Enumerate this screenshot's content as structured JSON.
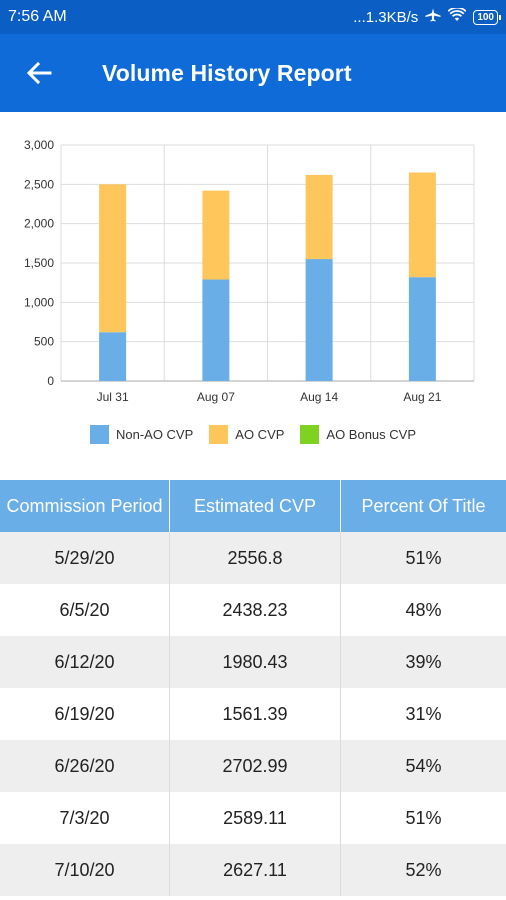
{
  "status_bar": {
    "time": "7:56 AM",
    "network_speed": "...1.3KB/s",
    "battery": "100",
    "icons": [
      "airplane-icon",
      "wifi-icon",
      "battery-icon"
    ]
  },
  "app_bar": {
    "title": "Volume History Report",
    "back_icon": "back-arrow-icon",
    "color": "#0e6bd7"
  },
  "chart_data": {
    "type": "bar",
    "stacked": true,
    "categories": [
      "Jul 31",
      "Aug 07",
      "Aug 14",
      "Aug 21"
    ],
    "series": [
      {
        "name": "Non-AO CVP",
        "color": "#6aaee8",
        "values": [
          620,
          1290,
          1550,
          1320
        ]
      },
      {
        "name": "AO CVP",
        "color": "#ffc65c",
        "values": [
          1880,
          1130,
          1070,
          1330
        ]
      },
      {
        "name": "AO Bonus CVP",
        "color": "#7ed321",
        "values": [
          0,
          0,
          0,
          0
        ]
      }
    ],
    "yticks": [
      "0",
      "500",
      "1,000",
      "1,500",
      "2,000",
      "2,500",
      "3,000"
    ],
    "ylim": [
      0,
      3000
    ],
    "grid": true,
    "legend_position": "bottom"
  },
  "table": {
    "headers": [
      "Commission Period",
      "Estimated CVP",
      "Percent Of Title"
    ],
    "rows": [
      [
        "5/29/20",
        "2556.8",
        "51%"
      ],
      [
        "6/5/20",
        "2438.23",
        "48%"
      ],
      [
        "6/12/20",
        "1980.43",
        "39%"
      ],
      [
        "6/19/20",
        "1561.39",
        "31%"
      ],
      [
        "6/26/20",
        "2702.99",
        "54%"
      ],
      [
        "7/3/20",
        "2589.11",
        "51%"
      ],
      [
        "7/10/20",
        "2627.11",
        "52%"
      ]
    ]
  }
}
